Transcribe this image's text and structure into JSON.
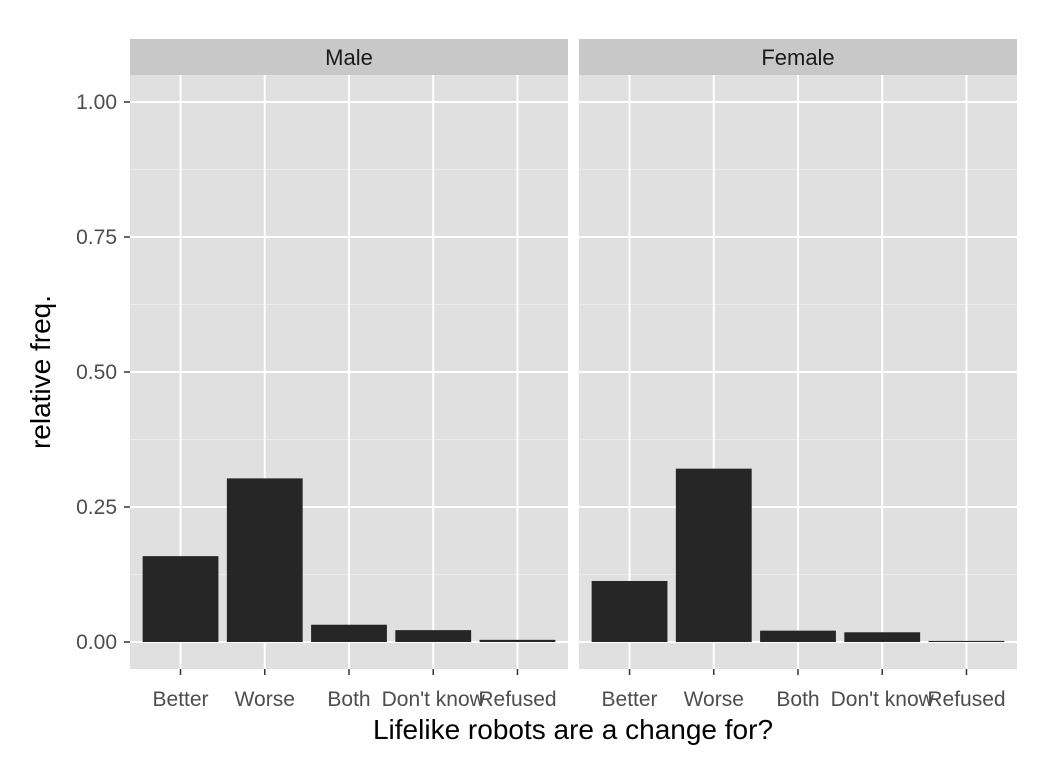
{
  "chart_data": {
    "type": "bar",
    "xlabel": "Lifelike robots are a change for?",
    "ylabel": "relative freq.",
    "categories": [
      "Better",
      "Worse",
      "Both",
      "Don't know",
      "Refused"
    ],
    "ylim": [
      -0.05,
      1.05
    ],
    "yticks": [
      0.0,
      0.25,
      0.5,
      0.75,
      1.0
    ],
    "ytick_labels": [
      "0.00",
      "0.25",
      "0.50",
      "0.75",
      "1.00"
    ],
    "grid": true,
    "legend": "none",
    "bar_color": "#262626",
    "panel_color": "#e0e0e0",
    "strip_color": "#c8c8c8",
    "facets": [
      {
        "label": "Male",
        "values": [
          0.159,
          0.303,
          0.032,
          0.022,
          0.004
        ]
      },
      {
        "label": "Female",
        "values": [
          0.113,
          0.321,
          0.021,
          0.018,
          0.002
        ]
      }
    ]
  }
}
